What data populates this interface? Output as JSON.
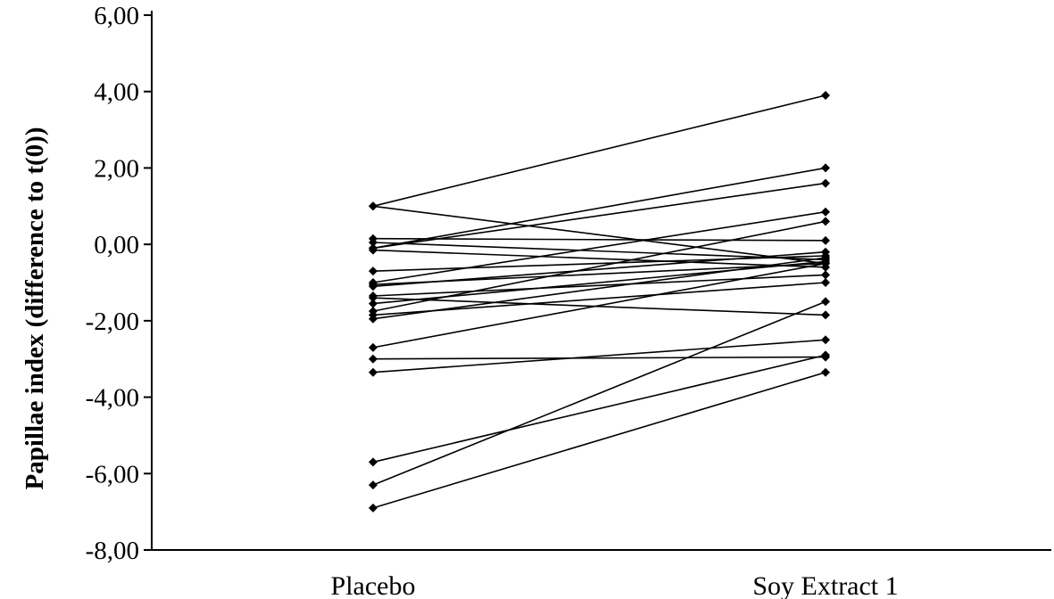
{
  "chart_data": {
    "type": "line",
    "title": "",
    "xlabel": "",
    "ylabel": "Papillae index (difference to t(0))",
    "categories": [
      "Placebo",
      "Soy Extract 1"
    ],
    "ylim": [
      -8,
      6
    ],
    "yticks": [
      6,
      4,
      2,
      0,
      -2,
      -4,
      -6,
      -8
    ],
    "ytick_labels": [
      "6,00",
      "4,00",
      "2,00",
      "0,00",
      "-2,00",
      "-4,00",
      "-6,00",
      "-8,00"
    ],
    "grid": false,
    "legend": "none",
    "marker": "diamond",
    "line_color": "#000000",
    "series": [
      {
        "values": [
          1.0,
          3.9
        ]
      },
      {
        "values": [
          1.0,
          -0.5
        ]
      },
      {
        "values": [
          0.15,
          0.1
        ]
      },
      {
        "values": [
          0.05,
          -0.4
        ]
      },
      {
        "values": [
          -0.1,
          2.0
        ]
      },
      {
        "values": [
          -0.1,
          1.6
        ]
      },
      {
        "values": [
          -0.15,
          -0.6
        ]
      },
      {
        "values": [
          -0.7,
          -0.3
        ]
      },
      {
        "values": [
          -1.0,
          0.85
        ]
      },
      {
        "values": [
          -1.05,
          -0.5
        ]
      },
      {
        "values": [
          -1.1,
          -0.2
        ]
      },
      {
        "values": [
          -1.35,
          -0.8
        ]
      },
      {
        "values": [
          -1.4,
          -1.85
        ]
      },
      {
        "values": [
          -1.55,
          -0.45
        ]
      },
      {
        "values": [
          -1.75,
          0.6
        ]
      },
      {
        "values": [
          -1.85,
          -1.0
        ]
      },
      {
        "values": [
          -1.95,
          -0.35
        ]
      },
      {
        "values": [
          -2.7,
          -0.5
        ]
      },
      {
        "values": [
          -3.0,
          -2.95
        ]
      },
      {
        "values": [
          -3.35,
          -2.5
        ]
      },
      {
        "values": [
          -5.7,
          -2.9
        ]
      },
      {
        "values": [
          -6.3,
          -1.5
        ]
      },
      {
        "values": [
          -6.9,
          -3.35
        ]
      }
    ]
  }
}
